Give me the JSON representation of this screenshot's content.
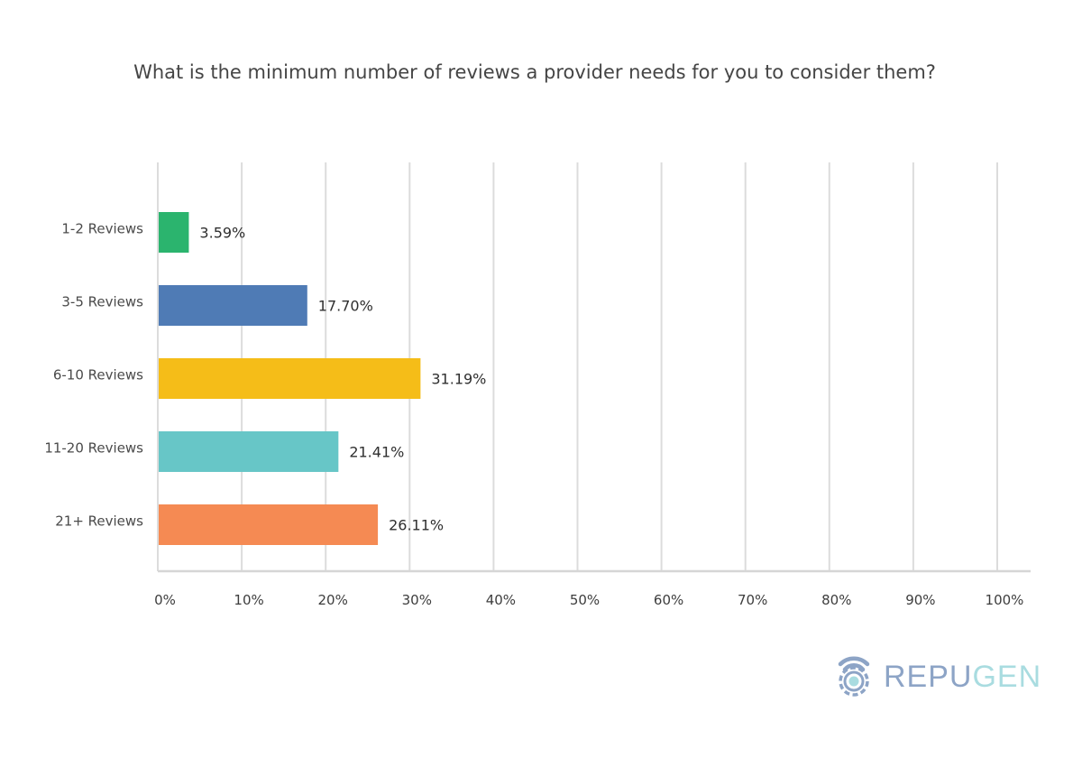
{
  "chart_data": {
    "type": "bar",
    "orientation": "horizontal",
    "title": "What is the minimum number of reviews a provider needs for you to consider them?",
    "categories": [
      "1-2 Reviews",
      "3-5 Reviews",
      "6-10 Reviews",
      "11-20 Reviews",
      "21+ Reviews"
    ],
    "values": [
      3.59,
      17.7,
      31.19,
      21.41,
      26.11
    ],
    "value_labels": [
      "3.59%",
      "17.70%",
      "31.19%",
      "21.41%",
      "26.11%"
    ],
    "colors": [
      "#2bb46e",
      "#4f7bb5",
      "#f5bd18",
      "#67c6c7",
      "#f58a53"
    ],
    "xlim": [
      0,
      100
    ],
    "x_ticks": [
      "0%",
      "10%",
      "20%",
      "30%",
      "40%",
      "50%",
      "60%",
      "70%",
      "80%",
      "90%",
      "100%"
    ],
    "grid": true,
    "xlabel": "",
    "ylabel": ""
  },
  "branding": {
    "logo_text_part1": "REPU",
    "logo_text_part2": "GEN",
    "logo_icon": "repugen-gear-signal-icon",
    "logo_colors": [
      "#8da4c6",
      "#a9dce0"
    ]
  }
}
